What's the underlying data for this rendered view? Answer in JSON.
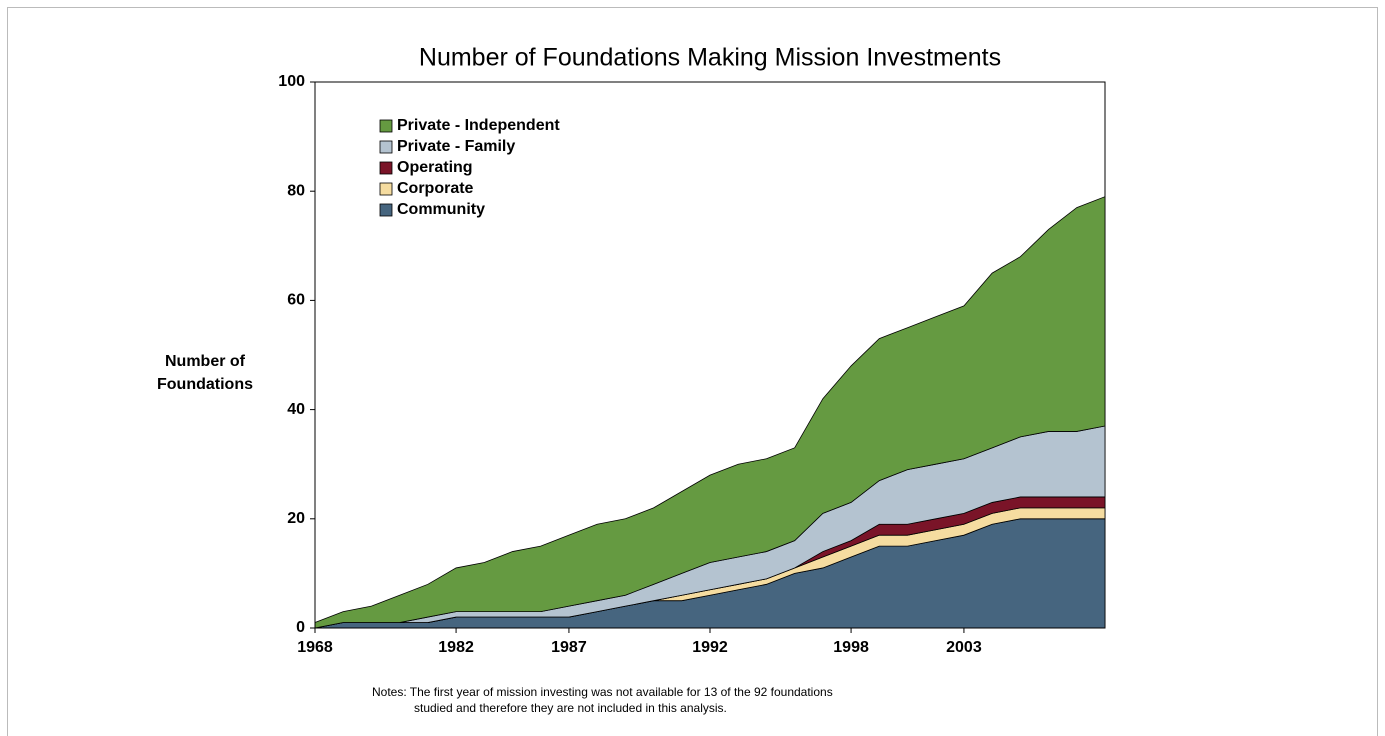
{
  "chart_data": {
    "type": "stacked_area",
    "title": "Number of Foundations Making Mission Investments",
    "y_label": [
      "Number of",
      "Foundations"
    ],
    "notes": [
      "Notes: The first year of mission investing was not available for 13 of the 92 foundations",
      "studied and therefore they are not included in this analysis."
    ],
    "categories": [
      "1968",
      null,
      null,
      null,
      null,
      "1982",
      null,
      null,
      null,
      "1987",
      null,
      null,
      null,
      null,
      "1992",
      null,
      null,
      null,
      null,
      "1998",
      null,
      null,
      null,
      "2003",
      null,
      null,
      null,
      null,
      null
    ],
    "series": [
      {
        "name": "Community",
        "color": "#46657f",
        "values": [
          0,
          1,
          1,
          1,
          1,
          2,
          2,
          2,
          2,
          2,
          3,
          4,
          5,
          5,
          6,
          7,
          8,
          10,
          11,
          13,
          15,
          15,
          16,
          17,
          19,
          20,
          20,
          20,
          20
        ]
      },
      {
        "name": "Corporate",
        "color": "#f5dca0",
        "values": [
          0,
          0,
          0,
          0,
          0,
          0,
          0,
          0,
          0,
          0,
          0,
          0,
          0,
          1,
          1,
          1,
          1,
          1,
          2,
          2,
          2,
          2,
          2,
          2,
          2,
          2,
          2,
          2,
          2
        ]
      },
      {
        "name": "Operating",
        "color": "#7a1428",
        "values": [
          0,
          0,
          0,
          0,
          0,
          0,
          0,
          0,
          0,
          0,
          0,
          0,
          0,
          0,
          0,
          0,
          0,
          0,
          1,
          1,
          2,
          2,
          2,
          2,
          2,
          2,
          2,
          2,
          2
        ]
      },
      {
        "name": "Private - Family",
        "color": "#b4c3d0",
        "values": [
          0,
          0,
          0,
          0,
          1,
          1,
          1,
          1,
          1,
          2,
          2,
          2,
          3,
          4,
          5,
          5,
          5,
          5,
          7,
          7,
          8,
          10,
          10,
          10,
          10,
          11,
          12,
          12,
          13
        ]
      },
      {
        "name": "Private - Independent",
        "color": "#659a41",
        "values": [
          1,
          2,
          3,
          5,
          6,
          8,
          9,
          11,
          12,
          13,
          14,
          14,
          14,
          15,
          16,
          17,
          17,
          17,
          21,
          25,
          26,
          26,
          27,
          28,
          32,
          33,
          37,
          41,
          42
        ]
      }
    ],
    "ylim": [
      0,
      100
    ],
    "yticks": [
      0,
      20,
      40,
      60,
      80,
      100
    ],
    "legend": "top-left"
  }
}
